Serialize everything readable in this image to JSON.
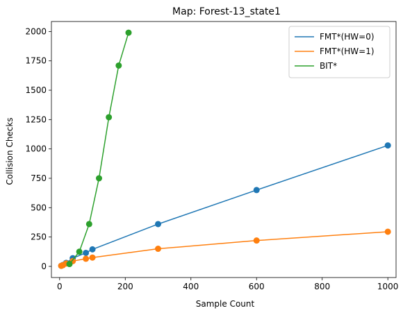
{
  "chart_data": {
    "type": "line",
    "title": "Map: Forest-13_state1",
    "xlabel": "Sample Count",
    "ylabel": "Collision Checks",
    "xlim": [
      -25,
      1025
    ],
    "ylim": [
      -95,
      2085
    ],
    "xticks": [
      0,
      200,
      400,
      600,
      800,
      1000
    ],
    "yticks": [
      0,
      250,
      500,
      750,
      1000,
      1250,
      1500,
      1750,
      2000
    ],
    "grid": false,
    "legend": "top-right",
    "series": [
      {
        "name": "FMT*(HW=0)",
        "color": "#1f77b4",
        "x": [
          5,
          10,
          20,
          40,
          80,
          100,
          300,
          600,
          1000
        ],
        "y": [
          5,
          12,
          30,
          70,
          115,
          145,
          360,
          650,
          1030
        ]
      },
      {
        "name": "FMT*(HW=1)",
        "color": "#ff7f0e",
        "x": [
          5,
          10,
          20,
          40,
          80,
          100,
          300,
          600,
          1000
        ],
        "y": [
          5,
          10,
          25,
          45,
          65,
          75,
          150,
          220,
          295
        ]
      },
      {
        "name": "BIT*",
        "color": "#2ca02c",
        "x": [
          30,
          60,
          90,
          120,
          150,
          180,
          210
        ],
        "y": [
          20,
          125,
          360,
          750,
          1270,
          1710,
          1990
        ]
      }
    ]
  }
}
